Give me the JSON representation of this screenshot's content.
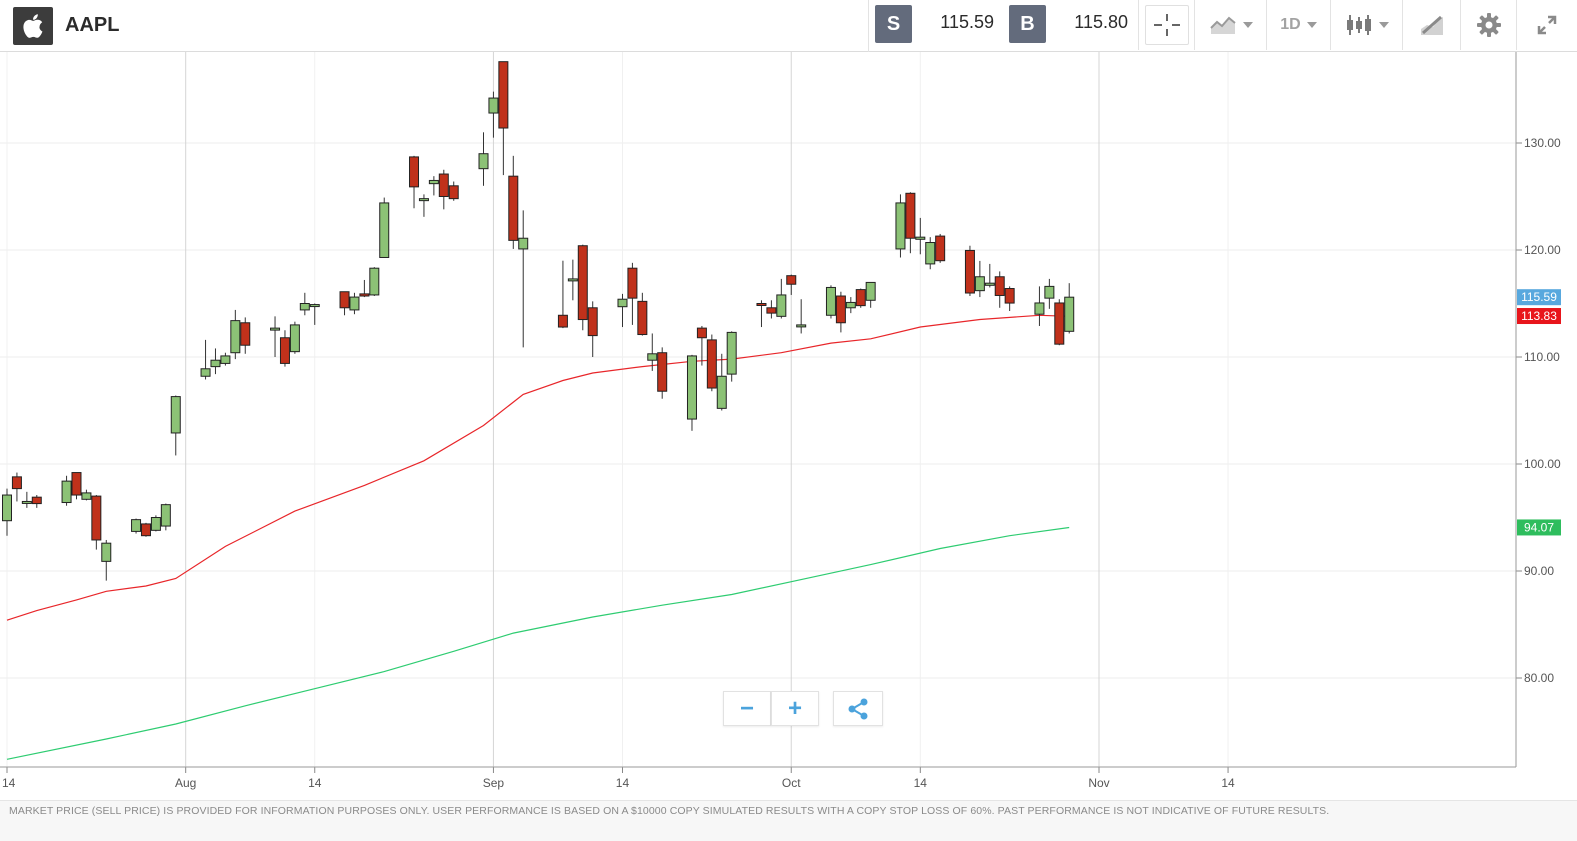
{
  "header": {
    "symbol": "AAPL",
    "sell_badge": "S",
    "sell_price": "115.59",
    "buy_badge": "B",
    "buy_price": "115.80",
    "timeframe": "1D"
  },
  "disclaimer": "MARKET PRICE (SELL PRICE) IS PROVIDED FOR INFORMATION PURPOSES ONLY. USER PERFORMANCE IS BASED ON A $10000 COPY SIMULATED RESULTS WITH A COPY STOP LOSS OF 60%. PAST PERFORMANCE IS NOT INDICATIVE OF FUTURE RESULTS.",
  "colors": {
    "up": "#8cc276",
    "down": "#c0311b",
    "ma_fast": "#e8262a",
    "ma_slow": "#2ecc71",
    "sell_badge": "#58a8de",
    "ma_fast_badge": "#e8151b",
    "ma_slow_badge": "#2ebd5d"
  },
  "chart_data": {
    "type": "candlestick",
    "title": "",
    "xlabel": "",
    "ylabel": "",
    "ylim": [
      72.0,
      139.0
    ],
    "y_ticks": [
      {
        "value": 80,
        "label": "80.00"
      },
      {
        "value": 90,
        "label": "90.00"
      },
      {
        "value": 100,
        "label": "100.00"
      },
      {
        "value": 110,
        "label": "110.00"
      },
      {
        "value": 120,
        "label": "120.00"
      },
      {
        "value": 130,
        "label": "130.00"
      }
    ],
    "x_ticks": [
      {
        "label": "14",
        "date": "2020-07-14",
        "major": false
      },
      {
        "label": "Aug",
        "date": "2020-08-01",
        "major": true
      },
      {
        "label": "14",
        "date": "2020-08-14",
        "major": false
      },
      {
        "label": "Sep",
        "date": "2020-09-01",
        "major": true
      },
      {
        "label": "14",
        "date": "2020-09-14",
        "major": false
      },
      {
        "label": "Oct",
        "date": "2020-10-01",
        "major": true
      },
      {
        "label": "14",
        "date": "2020-10-14",
        "major": false
      },
      {
        "label": "Nov",
        "date": "2020-11-01",
        "major": true
      },
      {
        "label": "14",
        "date": "2020-11-14",
        "major": false
      }
    ],
    "candles": [
      {
        "date": "2020-07-14",
        "o": 94.7,
        "h": 97.7,
        "l": 93.3,
        "c": 97.1
      },
      {
        "date": "2020-07-15",
        "o": 98.8,
        "h": 99.2,
        "l": 96.5,
        "c": 97.7
      },
      {
        "date": "2020-07-16",
        "o": 96.5,
        "h": 97.4,
        "l": 95.9,
        "c": 96.5
      },
      {
        "date": "2020-07-17",
        "o": 96.9,
        "h": 97.1,
        "l": 95.9,
        "c": 96.3
      },
      {
        "date": "2020-07-20",
        "o": 96.4,
        "h": 98.9,
        "l": 96.1,
        "c": 98.4
      },
      {
        "date": "2020-07-21",
        "o": 99.2,
        "h": 99.2,
        "l": 96.7,
        "c": 97.1
      },
      {
        "date": "2020-07-22",
        "o": 96.7,
        "h": 97.6,
        "l": 96.6,
        "c": 97.3
      },
      {
        "date": "2020-07-23",
        "o": 97.0,
        "h": 97.1,
        "l": 92.0,
        "c": 92.9
      },
      {
        "date": "2020-07-24",
        "o": 90.9,
        "h": 92.9,
        "l": 89.1,
        "c": 92.6
      },
      {
        "date": "2020-07-27",
        "o": 93.7,
        "h": 94.9,
        "l": 93.5,
        "c": 94.8
      },
      {
        "date": "2020-07-28",
        "o": 94.4,
        "h": 94.5,
        "l": 93.2,
        "c": 93.3
      },
      {
        "date": "2020-07-29",
        "o": 93.8,
        "h": 95.2,
        "l": 93.7,
        "c": 95.0
      },
      {
        "date": "2020-07-30",
        "o": 94.2,
        "h": 96.3,
        "l": 93.8,
        "c": 96.2
      },
      {
        "date": "2020-07-31",
        "o": 102.9,
        "h": 106.4,
        "l": 100.8,
        "c": 106.3
      },
      {
        "date": "2020-08-03",
        "o": 108.2,
        "h": 111.6,
        "l": 107.9,
        "c": 108.9
      },
      {
        "date": "2020-08-04",
        "o": 109.1,
        "h": 110.8,
        "l": 108.4,
        "c": 109.7
      },
      {
        "date": "2020-08-05",
        "o": 109.4,
        "h": 110.4,
        "l": 109.2,
        "c": 110.1
      },
      {
        "date": "2020-08-06",
        "o": 110.4,
        "h": 114.4,
        "l": 109.8,
        "c": 113.4
      },
      {
        "date": "2020-08-07",
        "o": 113.2,
        "h": 113.7,
        "l": 110.3,
        "c": 111.1
      },
      {
        "date": "2020-08-10",
        "o": 112.6,
        "h": 113.8,
        "l": 110.0,
        "c": 112.7
      },
      {
        "date": "2020-08-11",
        "o": 111.8,
        "h": 112.5,
        "l": 109.1,
        "c": 109.4
      },
      {
        "date": "2020-08-12",
        "o": 110.5,
        "h": 113.3,
        "l": 110.3,
        "c": 113.0
      },
      {
        "date": "2020-08-13",
        "o": 114.4,
        "h": 116.0,
        "l": 113.9,
        "c": 115.0
      },
      {
        "date": "2020-08-14",
        "o": 114.8,
        "h": 115.0,
        "l": 113.0,
        "c": 114.9
      },
      {
        "date": "2020-08-17",
        "o": 116.1,
        "h": 116.1,
        "l": 113.9,
        "c": 114.6
      },
      {
        "date": "2020-08-18",
        "o": 114.4,
        "h": 116.0,
        "l": 114.0,
        "c": 115.6
      },
      {
        "date": "2020-08-19",
        "o": 115.9,
        "h": 117.2,
        "l": 115.6,
        "c": 115.7
      },
      {
        "date": "2020-08-20",
        "o": 115.8,
        "h": 118.4,
        "l": 115.7,
        "c": 118.3
      },
      {
        "date": "2020-08-21",
        "o": 119.3,
        "h": 124.9,
        "l": 119.3,
        "c": 124.4
      },
      {
        "date": "2020-08-24",
        "o": 128.7,
        "h": 128.8,
        "l": 123.9,
        "c": 125.9
      },
      {
        "date": "2020-08-25",
        "o": 124.7,
        "h": 125.2,
        "l": 123.1,
        "c": 124.8
      },
      {
        "date": "2020-08-26",
        "o": 126.2,
        "h": 126.9,
        "l": 125.1,
        "c": 126.5
      },
      {
        "date": "2020-08-27",
        "o": 127.1,
        "h": 127.5,
        "l": 123.8,
        "c": 125.0
      },
      {
        "date": "2020-08-28",
        "o": 126.0,
        "h": 126.4,
        "l": 124.6,
        "c": 124.8
      },
      {
        "date": "2020-08-31",
        "o": 127.6,
        "h": 131.0,
        "l": 126.0,
        "c": 129.0
      },
      {
        "date": "2020-09-01",
        "o": 132.8,
        "h": 134.8,
        "l": 130.5,
        "c": 134.2
      },
      {
        "date": "2020-09-02",
        "o": 137.6,
        "h": 137.6,
        "l": 127.0,
        "c": 131.4
      },
      {
        "date": "2020-09-03",
        "o": 126.9,
        "h": 128.8,
        "l": 120.1,
        "c": 120.9
      },
      {
        "date": "2020-09-04",
        "o": 120.1,
        "h": 123.7,
        "l": 110.9,
        "c": 121.1
      },
      {
        "date": "2020-09-08",
        "o": 113.9,
        "h": 119.0,
        "l": 112.7,
        "c": 112.8
      },
      {
        "date": "2020-09-09",
        "o": 117.3,
        "h": 119.1,
        "l": 115.3,
        "c": 117.3
      },
      {
        "date": "2020-09-10",
        "o": 120.4,
        "h": 120.5,
        "l": 112.5,
        "c": 113.5
      },
      {
        "date": "2020-09-11",
        "o": 114.6,
        "h": 115.2,
        "l": 110.0,
        "c": 112.0
      },
      {
        "date": "2020-09-14",
        "o": 114.7,
        "h": 115.9,
        "l": 112.8,
        "c": 115.4
      },
      {
        "date": "2020-09-15",
        "o": 118.3,
        "h": 118.8,
        "l": 113.0,
        "c": 115.5
      },
      {
        "date": "2020-09-16",
        "o": 115.2,
        "h": 116.0,
        "l": 112.0,
        "c": 112.1
      },
      {
        "date": "2020-09-17",
        "o": 109.7,
        "h": 112.2,
        "l": 108.7,
        "c": 110.3
      },
      {
        "date": "2020-09-18",
        "o": 110.4,
        "h": 110.9,
        "l": 106.1,
        "c": 106.8
      },
      {
        "date": "2020-09-21",
        "o": 104.2,
        "h": 110.2,
        "l": 103.1,
        "c": 110.1
      },
      {
        "date": "2020-09-22",
        "o": 112.7,
        "h": 112.9,
        "l": 109.2,
        "c": 111.8
      },
      {
        "date": "2020-09-23",
        "o": 111.6,
        "h": 112.1,
        "l": 106.8,
        "c": 107.1
      },
      {
        "date": "2020-09-24",
        "o": 105.2,
        "h": 110.3,
        "l": 105.0,
        "c": 108.2
      },
      {
        "date": "2020-09-25",
        "o": 108.4,
        "h": 112.4,
        "l": 107.7,
        "c": 112.3
      },
      {
        "date": "2020-09-28",
        "o": 115.0,
        "h": 115.3,
        "l": 112.8,
        "c": 114.9
      },
      {
        "date": "2020-09-29",
        "o": 114.6,
        "h": 115.3,
        "l": 113.6,
        "c": 114.1
      },
      {
        "date": "2020-09-30",
        "o": 113.8,
        "h": 117.3,
        "l": 113.6,
        "c": 115.8
      },
      {
        "date": "2020-10-01",
        "o": 117.6,
        "h": 117.7,
        "l": 115.8,
        "c": 116.8
      },
      {
        "date": "2020-10-02",
        "o": 112.9,
        "h": 115.4,
        "l": 112.2,
        "c": 113.0
      },
      {
        "date": "2020-10-05",
        "o": 113.9,
        "h": 116.7,
        "l": 113.6,
        "c": 116.5
      },
      {
        "date": "2020-10-06",
        "o": 115.7,
        "h": 116.1,
        "l": 112.3,
        "c": 113.2
      },
      {
        "date": "2020-10-07",
        "o": 114.6,
        "h": 115.6,
        "l": 114.1,
        "c": 115.1
      },
      {
        "date": "2020-10-08",
        "o": 116.3,
        "h": 116.4,
        "l": 114.6,
        "c": 114.8
      },
      {
        "date": "2020-10-09",
        "o": 115.3,
        "h": 117.0,
        "l": 114.6,
        "c": 116.97
      },
      {
        "date": "2020-10-12",
        "o": 120.1,
        "h": 125.2,
        "l": 119.3,
        "c": 124.4
      },
      {
        "date": "2020-10-13",
        "o": 125.3,
        "h": 125.4,
        "l": 119.7,
        "c": 121.1
      },
      {
        "date": "2020-10-14",
        "o": 121.0,
        "h": 123.0,
        "l": 119.6,
        "c": 121.2
      },
      {
        "date": "2020-10-15",
        "o": 118.7,
        "h": 121.2,
        "l": 118.2,
        "c": 120.7
      },
      {
        "date": "2020-10-16",
        "o": 121.3,
        "h": 121.5,
        "l": 118.8,
        "c": 119.0
      },
      {
        "date": "2020-10-19",
        "o": 119.96,
        "h": 120.4,
        "l": 115.7,
        "c": 115.98
      },
      {
        "date": "2020-10-20",
        "o": 116.2,
        "h": 118.98,
        "l": 115.6,
        "c": 117.5
      },
      {
        "date": "2020-10-21",
        "o": 116.7,
        "h": 118.7,
        "l": 116.5,
        "c": 116.9
      },
      {
        "date": "2020-10-22",
        "o": 117.5,
        "h": 118.0,
        "l": 114.6,
        "c": 115.75
      },
      {
        "date": "2020-10-23",
        "o": 116.4,
        "h": 116.6,
        "l": 114.3,
        "c": 115.04
      },
      {
        "date": "2020-10-26",
        "o": 114.0,
        "h": 116.6,
        "l": 112.9,
        "c": 115.05
      },
      {
        "date": "2020-10-27",
        "o": 115.5,
        "h": 117.3,
        "l": 114.5,
        "c": 116.6
      },
      {
        "date": "2020-10-28",
        "o": 115.05,
        "h": 115.4,
        "l": 111.1,
        "c": 111.2
      },
      {
        "date": "2020-10-29",
        "o": 112.4,
        "h": 116.9,
        "l": 112.2,
        "c": 115.59
      }
    ],
    "series": [
      {
        "type": "line",
        "color": "#e8262a",
        "badge_label": "113.83",
        "points": [
          [
            "2020-07-14",
            85.4
          ],
          [
            "2020-07-17",
            86.3
          ],
          [
            "2020-07-21",
            87.3
          ],
          [
            "2020-07-24",
            88.1
          ],
          [
            "2020-07-28",
            88.6
          ],
          [
            "2020-07-31",
            89.3
          ],
          [
            "2020-08-05",
            92.3
          ],
          [
            "2020-08-12",
            95.6
          ],
          [
            "2020-08-19",
            98.0
          ],
          [
            "2020-08-25",
            100.3
          ],
          [
            "2020-08-31",
            103.6
          ],
          [
            "2020-09-04",
            106.5
          ],
          [
            "2020-09-08",
            107.8
          ],
          [
            "2020-09-11",
            108.5
          ],
          [
            "2020-09-16",
            109.1
          ],
          [
            "2020-09-21",
            109.6
          ],
          [
            "2020-09-25",
            109.8
          ],
          [
            "2020-09-30",
            110.4
          ],
          [
            "2020-10-05",
            111.3
          ],
          [
            "2020-10-09",
            111.7
          ],
          [
            "2020-10-14",
            112.8
          ],
          [
            "2020-10-20",
            113.5
          ],
          [
            "2020-10-26",
            113.9
          ],
          [
            "2020-10-29",
            113.8
          ]
        ]
      },
      {
        "type": "line",
        "color": "#2ecc71",
        "badge_label": "94.07",
        "points": [
          [
            "2020-07-14",
            72.4
          ],
          [
            "2020-07-24",
            74.3
          ],
          [
            "2020-07-31",
            75.7
          ],
          [
            "2020-08-07",
            77.4
          ],
          [
            "2020-08-14",
            79.0
          ],
          [
            "2020-08-21",
            80.6
          ],
          [
            "2020-08-28",
            82.5
          ],
          [
            "2020-09-03",
            84.2
          ],
          [
            "2020-09-11",
            85.7
          ],
          [
            "2020-09-18",
            86.8
          ],
          [
            "2020-09-25",
            87.8
          ],
          [
            "2020-10-02",
            89.2
          ],
          [
            "2020-10-09",
            90.6
          ],
          [
            "2020-10-16",
            92.1
          ],
          [
            "2020-10-23",
            93.3
          ],
          [
            "2020-10-29",
            94.07
          ]
        ]
      }
    ],
    "price_label": "115.59",
    "grid": true
  }
}
